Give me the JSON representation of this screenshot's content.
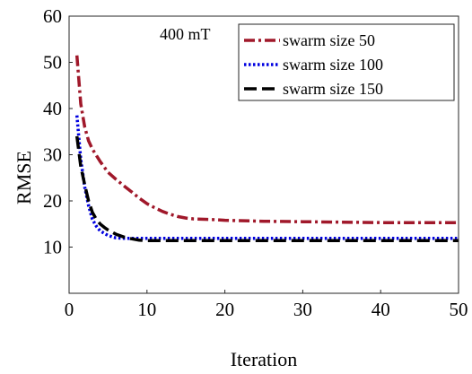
{
  "chart_data": {
    "type": "line",
    "title": "",
    "annotation": "400 mT",
    "xlabel": "Iteration",
    "ylabel": "RMSE",
    "xlim": [
      0,
      50
    ],
    "ylim": [
      0,
      60
    ],
    "x_ticks": [
      "0",
      "10",
      "20",
      "30",
      "40",
      "50"
    ],
    "y_ticks": [
      "10",
      "20",
      "30",
      "40",
      "50",
      "60"
    ],
    "x_tick_values": [
      0,
      10,
      20,
      30,
      40,
      50
    ],
    "y_tick_values": [
      10,
      20,
      30,
      40,
      50,
      60
    ],
    "grid": false,
    "legend_position": "top-right",
    "series": [
      {
        "name": "swarm size 50",
        "color": "#a0182a",
        "style": "dash-dot",
        "x": [
          1,
          1.5,
          2,
          2.5,
          3,
          4,
          5,
          6,
          7,
          8,
          9,
          10,
          11,
          12,
          13,
          14,
          15,
          16,
          18,
          20,
          25,
          30,
          35,
          40,
          45,
          50
        ],
        "y": [
          51.5,
          41,
          36,
          33,
          31.2,
          28.5,
          26.2,
          24.7,
          23.3,
          22.0,
          20.6,
          19.4,
          18.5,
          17.7,
          17.1,
          16.6,
          16.3,
          16.1,
          16.0,
          15.8,
          15.6,
          15.5,
          15.4,
          15.3,
          15.3,
          15.3
        ]
      },
      {
        "name": "swarm size 100",
        "color": "#0000e0",
        "style": "dotted",
        "x": [
          1,
          1.5,
          2,
          2.5,
          3,
          3.5,
          4,
          4.5,
          5,
          6,
          7,
          8,
          9,
          10,
          15,
          20,
          30,
          40,
          50
        ],
        "y": [
          38.5,
          29,
          23,
          19,
          16,
          14.5,
          13.5,
          13,
          12.5,
          12.0,
          11.9,
          11.9,
          11.9,
          11.9,
          11.9,
          11.9,
          11.9,
          11.9,
          11.9
        ]
      },
      {
        "name": "swarm size 150",
        "color": "#000000",
        "style": "dashed",
        "x": [
          1,
          1.5,
          2,
          2.5,
          3,
          3.5,
          4,
          4.5,
          5,
          6,
          7,
          8,
          9,
          10,
          15,
          20,
          30,
          40,
          50
        ],
        "y": [
          34,
          27.5,
          23.5,
          20,
          17.5,
          16,
          15,
          14.3,
          13.7,
          12.8,
          12.2,
          11.8,
          11.5,
          11.4,
          11.4,
          11.4,
          11.4,
          11.4,
          11.4
        ]
      }
    ]
  }
}
